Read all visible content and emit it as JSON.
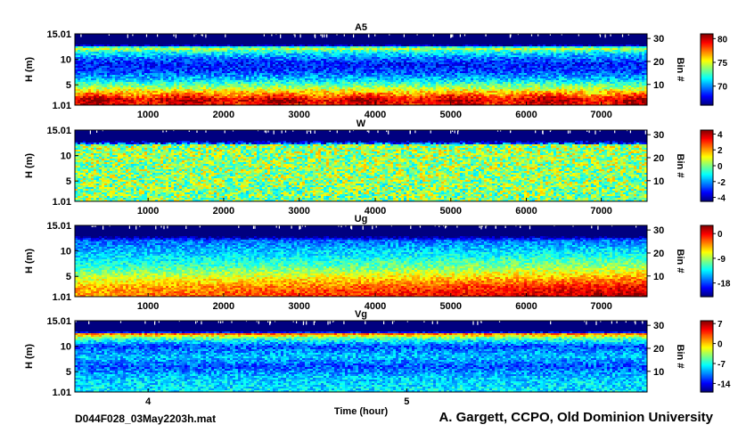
{
  "filename": "D044F028_03May2203h.mat",
  "credit": "A. Gargett, CCPO, Old Dominion University",
  "time_xlabel": "Time (hour)",
  "chart_data": [
    {
      "type": "heatmap",
      "title": "A5",
      "ylabel": "H (m)",
      "ylabel_right": "Bin #",
      "yticks": [
        "1.01",
        "5",
        "10",
        "15.01"
      ],
      "yticks_right": [
        "10",
        "20",
        "30"
      ],
      "xticks": [
        "1000",
        "2000",
        "3000",
        "4000",
        "5000",
        "6000",
        "7000"
      ],
      "colorbar_ticks": [
        "70",
        "75",
        "80"
      ],
      "colorbar_range": [
        66,
        81
      ],
      "profile": [
        {
          "h": 1.01,
          "v": 79
        },
        {
          "h": 2.0,
          "v": 80
        },
        {
          "h": 3.2,
          "v": 77
        },
        {
          "h": 4.5,
          "v": 74
        },
        {
          "h": 6.0,
          "v": 71
        },
        {
          "h": 7.5,
          "v": 69
        },
        {
          "h": 9.0,
          "v": 68
        },
        {
          "h": 10.5,
          "v": 70
        },
        {
          "h": 11.5,
          "v": 72
        },
        {
          "h": 12.2,
          "v": 75
        },
        {
          "h": 12.8,
          "v": 66
        },
        {
          "h": 15.01,
          "v": 66
        }
      ]
    },
    {
      "type": "heatmap",
      "title": "W",
      "ylabel": "H (m)",
      "ylabel_right": "Bin #",
      "yticks": [
        "1.01",
        "5",
        "10",
        "15.01"
      ],
      "yticks_right": [
        "10",
        "20",
        "30"
      ],
      "xticks": [
        "1000",
        "2000",
        "3000",
        "4000",
        "5000",
        "6000",
        "7000"
      ],
      "colorbar_ticks": [
        "-4",
        "-2",
        "0",
        "2",
        "4"
      ],
      "colorbar_range": [
        -4.5,
        4.5
      ],
      "profile": [
        {
          "h": 1.01,
          "v": 0
        },
        {
          "h": 6.0,
          "v": 0.2
        },
        {
          "h": 12.0,
          "v": 0.3
        },
        {
          "h": 12.6,
          "v": -4.5
        },
        {
          "h": 15.01,
          "v": -4.5
        }
      ]
    },
    {
      "type": "heatmap",
      "title": "Ug",
      "ylabel": "H (m)",
      "ylabel_right": "Bin #",
      "yticks": [
        "1.01",
        "5",
        "10",
        "15.01"
      ],
      "yticks_right": [
        "10",
        "20",
        "30"
      ],
      "xticks": [
        "1000",
        "2000",
        "3000",
        "4000",
        "5000",
        "6000",
        "7000"
      ],
      "colorbar_ticks": [
        "-18",
        "-9",
        "0"
      ],
      "colorbar_range": [
        -23,
        3
      ],
      "profile": [
        {
          "h": 1.01,
          "v": -1
        },
        {
          "h": 3.0,
          "v": -3
        },
        {
          "h": 5.0,
          "v": -7
        },
        {
          "h": 7.0,
          "v": -11
        },
        {
          "h": 9.5,
          "v": -14
        },
        {
          "h": 12.0,
          "v": -17
        },
        {
          "h": 12.8,
          "v": -23
        },
        {
          "h": 15.01,
          "v": -23
        }
      ]
    },
    {
      "type": "heatmap",
      "title": "Vg",
      "ylabel": "H (m)",
      "ylabel_right": "Bin #",
      "xlabel": "Time (hour)",
      "yticks": [
        "1.01",
        "5",
        "10",
        "15.01"
      ],
      "yticks_right": [
        "10",
        "20",
        "30"
      ],
      "xticks": [
        "4",
        "5"
      ],
      "colorbar_ticks": [
        "-14",
        "-7",
        "0",
        "7"
      ],
      "colorbar_range": [
        -17,
        8
      ],
      "profile": [
        {
          "h": 1.01,
          "v": -8
        },
        {
          "h": 4.0,
          "v": -9
        },
        {
          "h": 6.0,
          "v": -12
        },
        {
          "h": 8.0,
          "v": -9
        },
        {
          "h": 10.0,
          "v": -12
        },
        {
          "h": 11.5,
          "v": -6
        },
        {
          "h": 12.4,
          "v": 2
        },
        {
          "h": 12.8,
          "v": -17
        },
        {
          "h": 15.01,
          "v": -17
        }
      ]
    }
  ]
}
